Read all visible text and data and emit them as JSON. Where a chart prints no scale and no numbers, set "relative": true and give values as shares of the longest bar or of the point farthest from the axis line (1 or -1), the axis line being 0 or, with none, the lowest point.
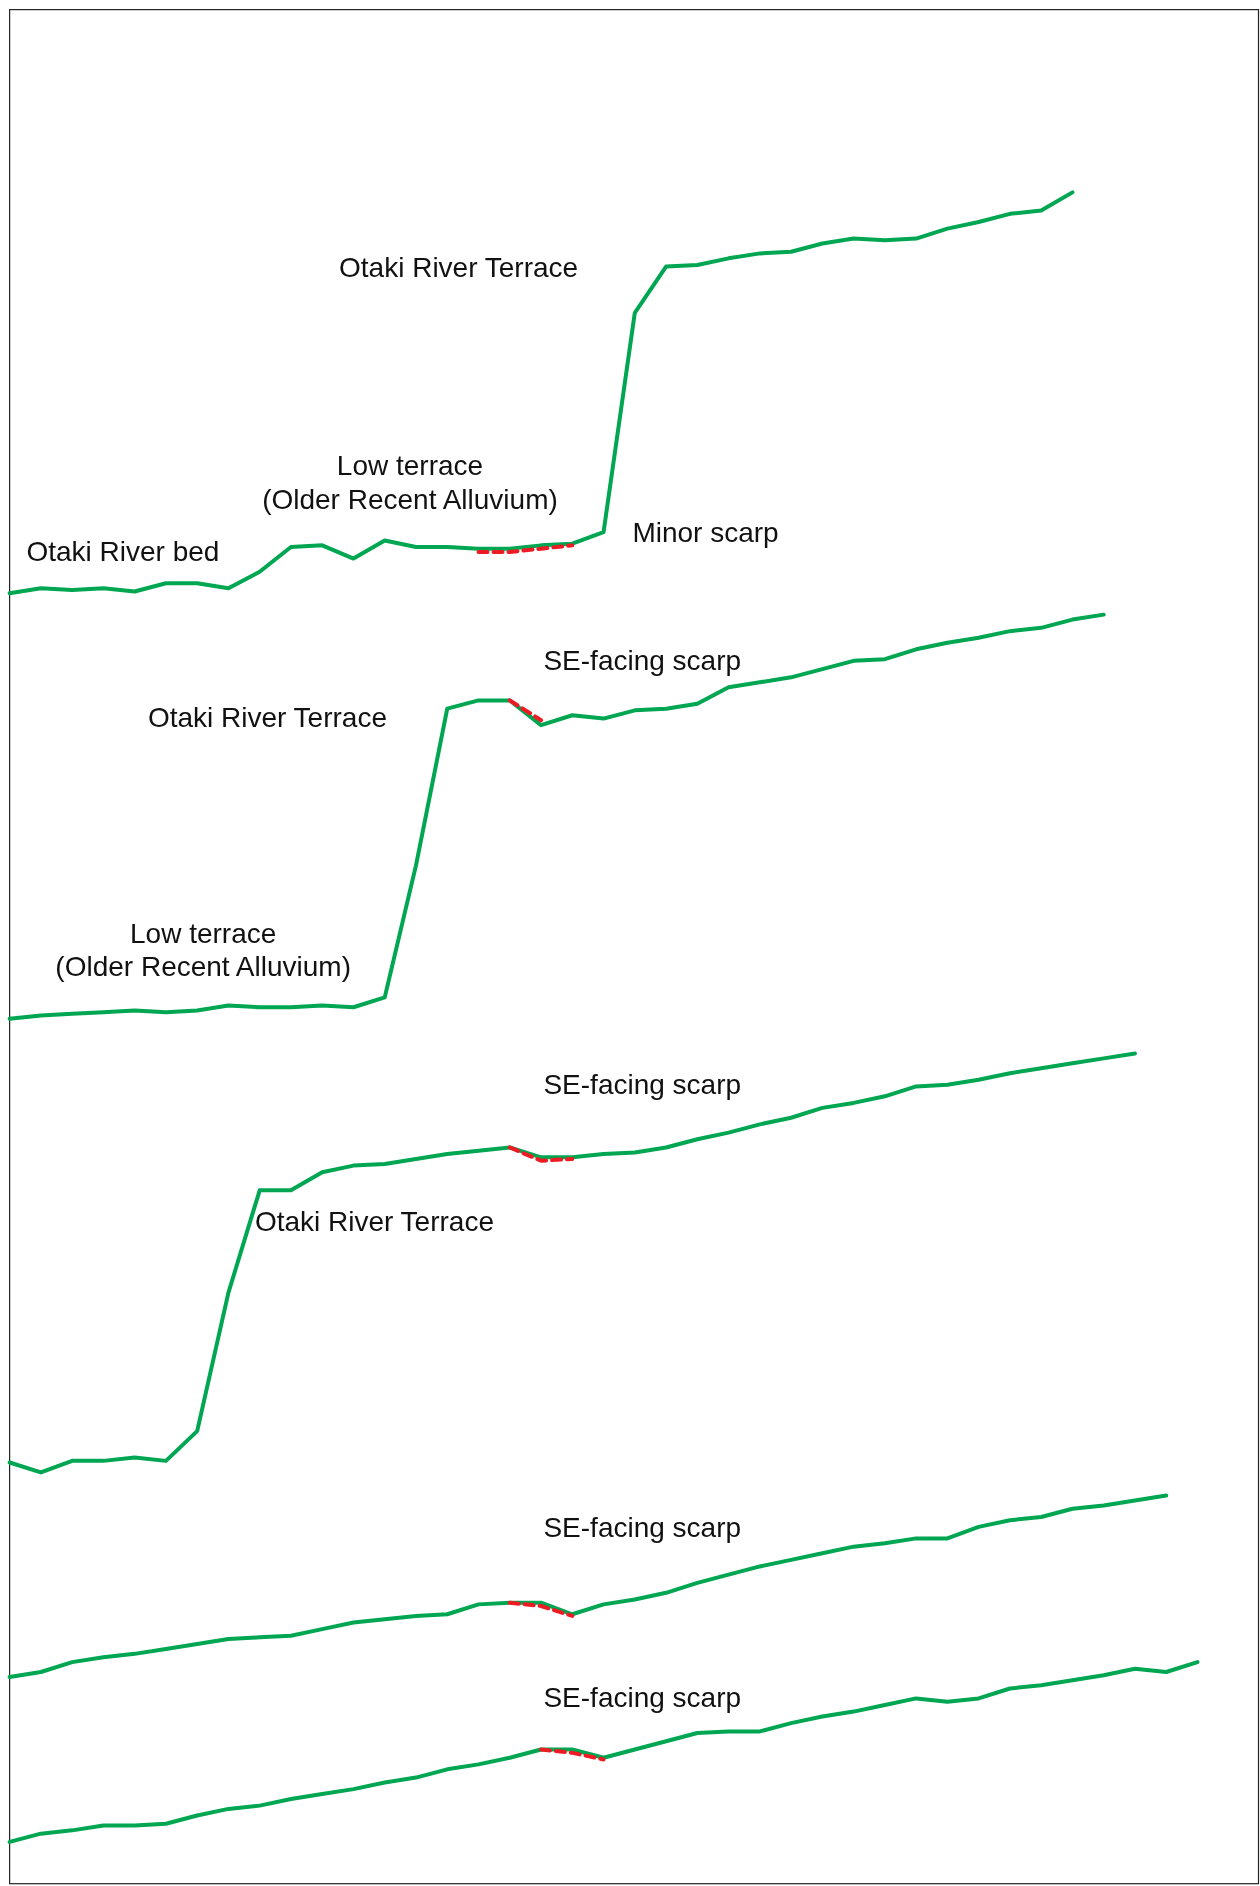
{
  "chart_data": {
    "type": "line",
    "relative": true,
    "categories": [
      null,
      null,
      null,
      null,
      null,
      null,
      null,
      null,
      null,
      null,
      null,
      null,
      null,
      null,
      null,
      null,
      null,
      null,
      null,
      null,
      null,
      null,
      null,
      null,
      null,
      null,
      null,
      null,
      null,
      null,
      null,
      null,
      null,
      null,
      null,
      null,
      null,
      null,
      null,
      null,
      null
    ],
    "series": [
      {
        "color": "#00a651",
        "line_style": "solid",
        "values": [
          0.757,
          0.76,
          0.759,
          0.76,
          0.758,
          0.763,
          0.763,
          0.76,
          0.77,
          0.785,
          0.786,
          0.778,
          0.789,
          0.785,
          0.785,
          0.784,
          0.784,
          0.786,
          0.787,
          0.794,
          0.927,
          0.955,
          0.956,
          0.96,
          0.963,
          0.964,
          0.969,
          0.972,
          0.971,
          0.972,
          0.978,
          0.982,
          0.987,
          0.989,
          1,
          null,
          null,
          null,
          null,
          null,
          null
        ]
      },
      {
        "color": "#00a651",
        "line_style": "solid",
        "values": [
          0.499,
          0.501,
          0.502,
          0.503,
          0.504,
          0.503,
          0.504,
          0.507,
          0.506,
          0.506,
          0.507,
          0.506,
          0.512,
          0.592,
          0.687,
          0.692,
          0.692,
          0.677,
          0.683,
          0.681,
          0.686,
          0.687,
          0.69,
          0.7,
          0.703,
          0.706,
          0.711,
          0.716,
          0.717,
          0.723,
          0.727,
          0.73,
          0.734,
          0.736,
          0.741,
          0.744,
          null,
          null,
          null,
          null,
          null
        ]
      },
      {
        "color": "#00a651",
        "line_style": "solid",
        "values": [
          0.23,
          0.224,
          0.231,
          0.231,
          0.233,
          0.231,
          0.249,
          0.333,
          0.395,
          0.395,
          0.406,
          0.41,
          0.411,
          0.414,
          0.417,
          0.419,
          0.421,
          0.415,
          0.415,
          0.417,
          0.418,
          0.421,
          0.426,
          0.43,
          0.435,
          0.439,
          0.445,
          0.448,
          0.452,
          0.458,
          0.459,
          0.462,
          0.466,
          0.469,
          0.472,
          0.475,
          0.478,
          null,
          null,
          null,
          null
        ]
      },
      {
        "color": "#00a651",
        "line_style": "solid",
        "values": [
          0.1,
          0.103,
          0.109,
          0.112,
          0.114,
          0.117,
          0.12,
          0.123,
          0.124,
          0.125,
          0.129,
          0.133,
          0.135,
          0.137,
          0.138,
          0.144,
          0.145,
          0.145,
          0.138,
          0.144,
          0.147,
          0.151,
          0.157,
          0.162,
          0.167,
          0.171,
          0.175,
          0.179,
          0.181,
          0.184,
          0.184,
          0.191,
          0.195,
          0.197,
          0.202,
          0.204,
          0.207,
          0.21,
          null,
          null,
          null
        ]
      },
      {
        "color": "#00a651",
        "line_style": "solid",
        "values": [
          0,
          0.005,
          0.007,
          0.01,
          0.01,
          0.011,
          0.016,
          0.02,
          0.022,
          0.026,
          0.029,
          0.032,
          0.036,
          0.039,
          0.044,
          0.047,
          0.051,
          0.056,
          0.056,
          0.051,
          0.056,
          0.061,
          0.066,
          0.067,
          0.067,
          0.072,
          0.076,
          0.079,
          0.083,
          0.087,
          0.085,
          0.087,
          0.093,
          0.095,
          0.098,
          0.101,
          0.105,
          0.103,
          0.109,
          null,
          null
        ]
      },
      {
        "color": "#ed1c24",
        "line_style": "dashed",
        "values": [
          null,
          null,
          null,
          null,
          null,
          null,
          null,
          null,
          null,
          null,
          null,
          null,
          null,
          null,
          null,
          0.782,
          0.782,
          0.784,
          0.786,
          null,
          null,
          null,
          null,
          null,
          null,
          null,
          null,
          null,
          null,
          null,
          null,
          null,
          null,
          null,
          null,
          null,
          null,
          null,
          null,
          null,
          null
        ]
      },
      {
        "color": "#ed1c24",
        "line_style": "dashed",
        "values": [
          null,
          null,
          null,
          null,
          null,
          null,
          null,
          null,
          null,
          null,
          null,
          null,
          null,
          null,
          null,
          null,
          0.692,
          0.68,
          null,
          null,
          null,
          null,
          null,
          null,
          null,
          null,
          null,
          null,
          null,
          null,
          null,
          null,
          null,
          null,
          null,
          null,
          null,
          null,
          null,
          null,
          null
        ]
      },
      {
        "color": "#ed1c24",
        "line_style": "dashed",
        "values": [
          null,
          null,
          null,
          null,
          null,
          null,
          null,
          null,
          null,
          null,
          null,
          null,
          null,
          null,
          null,
          null,
          0.421,
          0.413,
          0.414,
          null,
          null,
          null,
          null,
          null,
          null,
          null,
          null,
          null,
          null,
          null,
          null,
          null,
          null,
          null,
          null,
          null,
          null,
          null,
          null,
          null,
          null
        ]
      },
      {
        "color": "#ed1c24",
        "line_style": "dashed",
        "values": [
          null,
          null,
          null,
          null,
          null,
          null,
          null,
          null,
          null,
          null,
          null,
          null,
          null,
          null,
          null,
          null,
          0.145,
          0.143,
          0.137,
          null,
          null,
          null,
          null,
          null,
          null,
          null,
          null,
          null,
          null,
          null,
          null,
          null,
          null,
          null,
          null,
          null,
          null,
          null,
          null,
          null,
          null
        ]
      },
      {
        "color": "#ed1c24",
        "line_style": "dashed",
        "values": [
          null,
          null,
          null,
          null,
          null,
          null,
          null,
          null,
          null,
          null,
          null,
          null,
          null,
          null,
          null,
          null,
          null,
          0.056,
          0.054,
          0.05,
          null,
          null,
          null,
          null,
          null,
          null,
          null,
          null,
          null,
          null,
          null,
          null,
          null,
          null,
          null,
          null,
          null,
          null,
          null,
          null,
          null
        ]
      }
    ],
    "annotations": [
      "Otaki River Terrace",
      "Low terrace",
      "(Older Recent Alluvium)",
      "Minor scarp",
      "Otaki River bed",
      "SE-facing scarp",
      "Otaki River Terrace",
      "Low terrace",
      "(Older Recent Alluvium)",
      "SE-facing scarp",
      "Otaki River Terrace",
      "SE-facing scarp",
      "SE-facing scarp"
    ]
  }
}
